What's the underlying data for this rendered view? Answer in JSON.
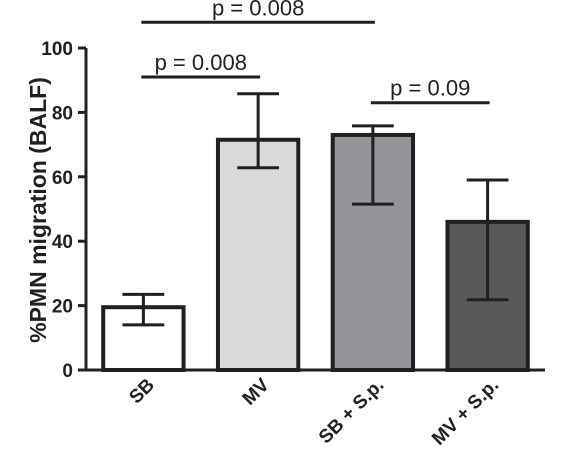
{
  "chart_data": {
    "type": "bar",
    "title": "",
    "xlabel": "",
    "ylabel": "%PMN migration (BALF)",
    "ylim": [
      0,
      100
    ],
    "yticks": [
      0,
      20,
      40,
      60,
      80,
      100
    ],
    "grid": false,
    "categories": [
      "SB",
      "MV",
      "SB + S.p.",
      "MV + S.p."
    ],
    "values": [
      19.5,
      71.5,
      73.0,
      46.0
    ],
    "error_upper": [
      23.5,
      85.8,
      75.8,
      59.0
    ],
    "error_lower": [
      14.0,
      62.8,
      51.5,
      21.8
    ],
    "bar_colors": [
      "#ffffff",
      "#d9dadb",
      "#939598",
      "#58595b"
    ],
    "annotations": [
      {
        "text": "p = 0.008",
        "from": "SB",
        "to": "SB + S.p.",
        "y": 108
      },
      {
        "text": "p = 0.008",
        "from": "SB",
        "to": "MV",
        "y": 91
      },
      {
        "text": "p = 0.09",
        "from": "SB + S.p.",
        "to": "MV + S.p.",
        "y": 83
      }
    ]
  }
}
